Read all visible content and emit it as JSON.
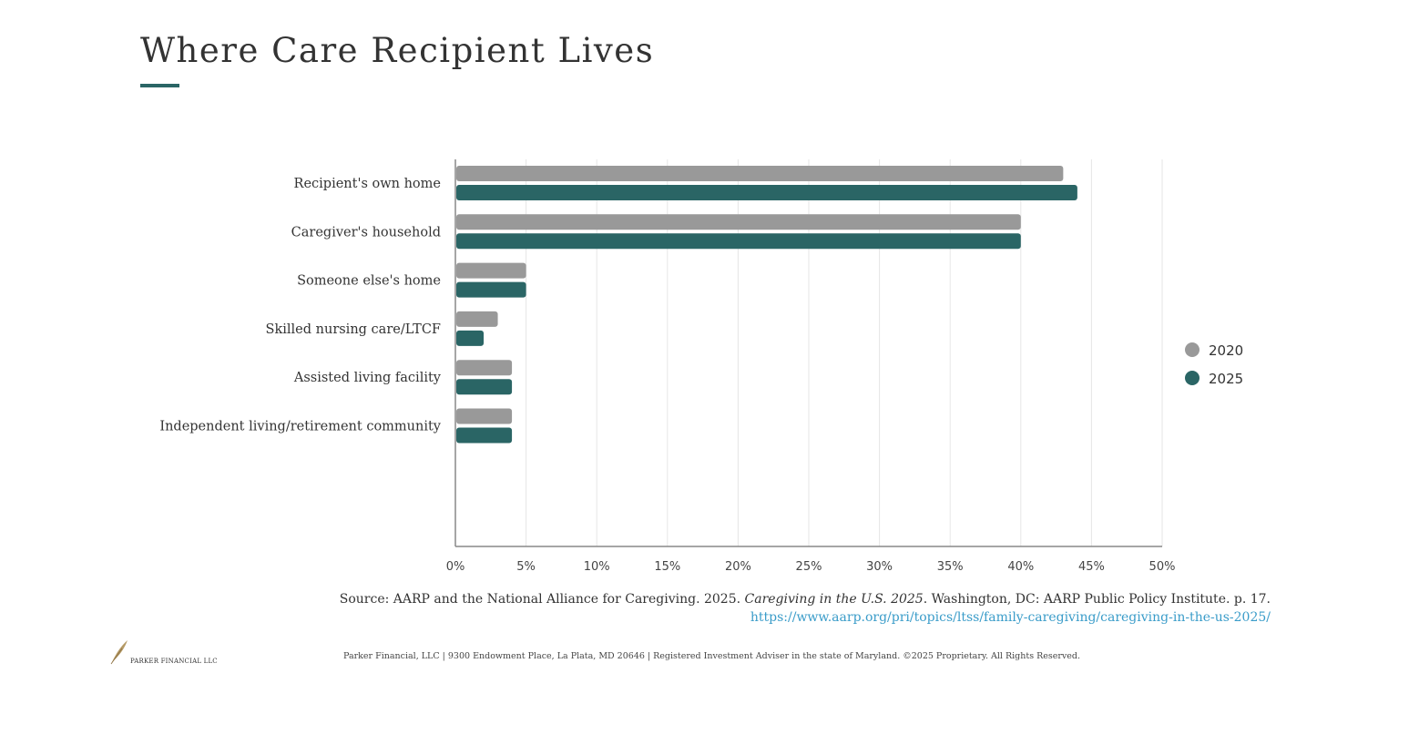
{
  "chart_data": {
    "type": "bar",
    "orientation": "horizontal",
    "title": "Where Care Recipient Lives",
    "categories": [
      "Recipient's own home",
      "Caregiver's household",
      "Someone else's home",
      "Skilled nursing care/LTCF",
      "Assisted living facility",
      "Independent living/retirement community"
    ],
    "series": [
      {
        "name": "2020",
        "color": "#999999",
        "values": [
          43,
          40,
          5,
          3,
          4,
          4
        ]
      },
      {
        "name": "2025",
        "color": "#2a6565",
        "values": [
          44,
          40,
          5,
          2,
          4,
          4
        ]
      }
    ],
    "xlim": [
      0,
      50
    ],
    "xticks": [
      0,
      5,
      10,
      15,
      20,
      25,
      30,
      35,
      40,
      45,
      50
    ],
    "xtick_labels": [
      "0%",
      "5%",
      "10%",
      "15%",
      "20%",
      "25%",
      "30%",
      "35%",
      "40%",
      "45%",
      "50%"
    ],
    "xlabel": "",
    "ylabel": "",
    "grid": true,
    "legend_position": "right"
  },
  "source": {
    "prefix": "Source: AARP and the National Alliance for Caregiving. 2025.",
    "title_italic": "Caregiving in the U.S. 2025",
    "suffix": ". Washington, DC: AARP Public Policy Institute. p. 17.",
    "url": "https://www.aarp.org/pri/topics/ltss/family-caregiving/caregiving-in-the-us-2025/"
  },
  "footer": "Parker Financial, LLC | 9300 Endowment Place, La Plata, MD 20646 | Registered Investment Adviser in the state of Maryland. ©2025 Proprietary. All Rights Reserved.",
  "logo": "PARKER FINANCIAL LLC"
}
